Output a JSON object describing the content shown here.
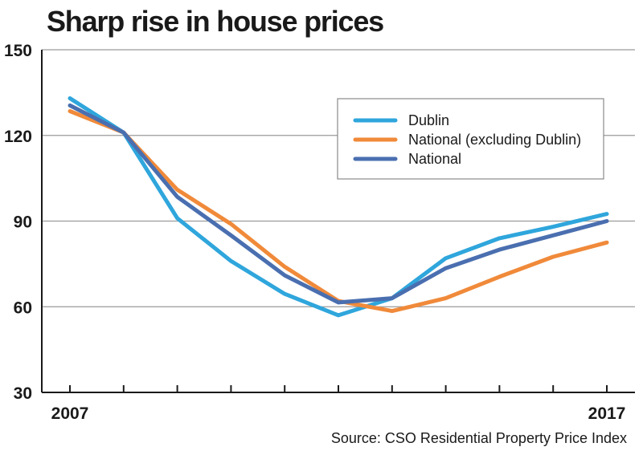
{
  "chart_data": {
    "type": "line",
    "title": "Sharp rise in house prices",
    "source": "Source: CSO Residential Property Price Index",
    "x_tick_labels": [
      "2007",
      "2017"
    ],
    "x": [
      2007,
      2008,
      2009,
      2010,
      2011,
      2012,
      2013,
      2014,
      2015,
      2016,
      2017
    ],
    "ylim": [
      30,
      150
    ],
    "yticks": [
      30,
      60,
      90,
      120,
      150
    ],
    "grid": "horizontal",
    "legend_position": "top-right",
    "series": [
      {
        "name": "Dublin",
        "color": "#2fa6dc",
        "values": [
          133,
          121,
          91,
          76,
          64.5,
          57,
          63,
          77,
          84,
          88,
          92.5
        ]
      },
      {
        "name": "National (excluding Dublin)",
        "color": "#f08a3a",
        "values": [
          128.5,
          121,
          101,
          89,
          74,
          62,
          58.5,
          63,
          70.5,
          77.5,
          82.5
        ]
      },
      {
        "name": "National",
        "color": "#4a6fb0",
        "values": [
          130.5,
          121,
          98.5,
          85,
          71,
          61.5,
          63,
          73.5,
          80,
          85,
          90
        ]
      }
    ]
  }
}
